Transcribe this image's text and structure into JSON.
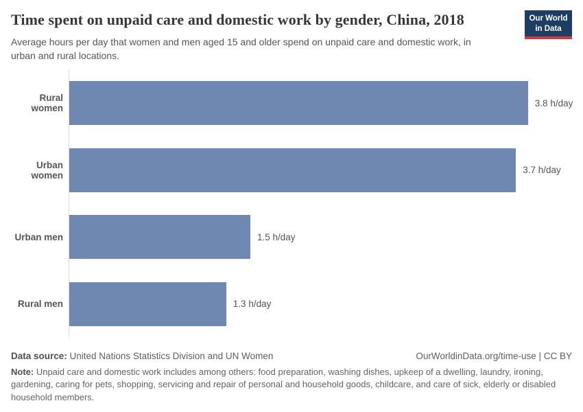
{
  "header": {
    "title": "Time spent on unpaid care and domestic work by gender, China, 2018",
    "subtitle": "Average hours per day that women and men aged 15 and older spend on unpaid care and domestic work, in urban and rural locations.",
    "logo": {
      "line1": "Our World",
      "line2": "in Data"
    }
  },
  "chart_data": {
    "type": "bar",
    "orientation": "horizontal",
    "title": "Time spent on unpaid care and domestic work by gender, China, 2018",
    "categories": [
      "Rural women",
      "Urban women",
      "Urban men",
      "Rural men"
    ],
    "values": [
      3.8,
      3.7,
      1.5,
      1.3
    ],
    "value_labels": [
      "3.8 h/day",
      "3.7 h/day",
      "1.5 h/day",
      "1.3 h/day"
    ],
    "unit": "h/day",
    "xlabel": "",
    "ylabel": "",
    "xlim": [
      0,
      3.87
    ],
    "grid": false,
    "legend": "none",
    "bar_color": "#6e88b2"
  },
  "footer": {
    "datasource_label": "Data source:",
    "datasource_text": " United Nations Statistics Division and UN Women",
    "attribution": "OurWorldinData.org/time-use | CC BY",
    "note_label": "Note:",
    "note_text": " Unpaid care and domestic work includes among others: food preparation, washing dishes, upkeep of a dwelling, laundry, ironing, gardening, caring for pets, shopping, servicing and repair of personal and household goods, childcare, and care of sick, elderly or disabled household members."
  },
  "colors": {
    "bar": "#6e88b2",
    "axis": "#dcdcdc",
    "logo_background": "#1d3d63",
    "logo_accent": "#d13a34"
  }
}
